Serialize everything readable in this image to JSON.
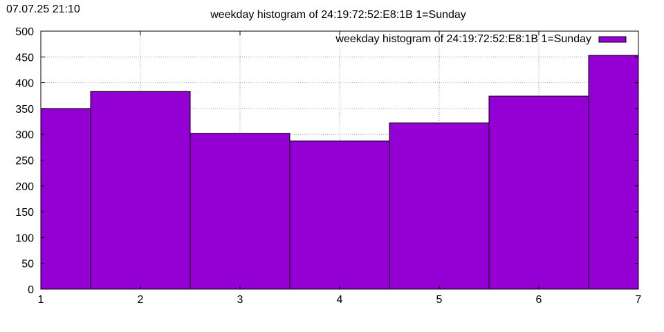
{
  "timestamp": "07.07.25 21:10",
  "chart_data": {
    "type": "bar",
    "title": "weekday histogram of 24:19:72:52:E8:1B 1=Sunday",
    "xlabel": "",
    "ylabel": "",
    "x": [
      1,
      2,
      3,
      4,
      5,
      6,
      7
    ],
    "x_ticks": [
      "1",
      "2",
      "3",
      "4",
      "5",
      "6",
      "7"
    ],
    "xlim": [
      1,
      7
    ],
    "ylim": [
      0,
      500
    ],
    "y_ticks": [
      "0",
      "50",
      "100",
      "150",
      "200",
      "250",
      "300",
      "350",
      "400",
      "450",
      "500"
    ],
    "series": [
      {
        "name": "weekday histogram of 24:19:72:52:E8:1B 1=Sunday",
        "color": "#9400d3",
        "values": [
          350,
          383,
          302,
          287,
          322,
          374,
          453
        ]
      }
    ],
    "bar_width": 1,
    "grid": true,
    "legend_position": "top-right"
  }
}
